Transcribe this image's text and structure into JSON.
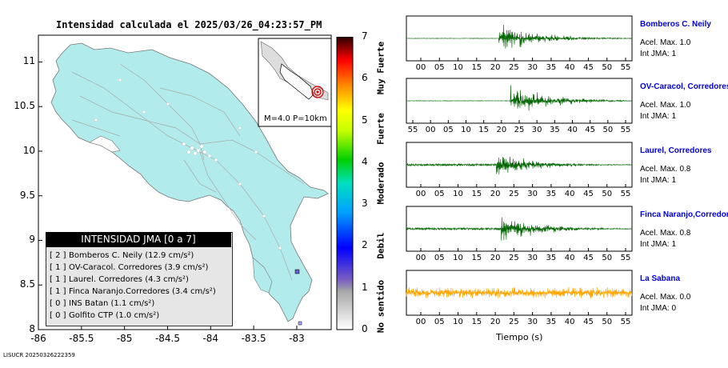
{
  "map": {
    "title": "Intensidad calculada el 2025/03/26_04:23:57_PM",
    "inset_label": "M=4.0 P=10km",
    "footer_id": "LISUCR 20250326222359"
  },
  "legend": {
    "title": "INTENSIDAD JMA [0 a 7]",
    "rows": [
      {
        "code": "[ 2 ]",
        "text": "Bomberos C. Neily (12.9 cm/s²)"
      },
      {
        "code": "[ 1 ]",
        "text": "OV-Caracol. Corredores (3.9 cm/s²)"
      },
      {
        "code": "[ 1 ]",
        "text": "Laurel. Corredores (4.3 cm/s²)"
      },
      {
        "code": "[ 1 ]",
        "text": "Finca Naranjo.Corredores (3.4 cm/s²)"
      },
      {
        "code": "[ 0 ]",
        "text": "INS Batan (1.1 cm/s²)"
      },
      {
        "code": "[ 0 ]",
        "text": "Golfito CTP (1.0 cm/s²)"
      }
    ]
  },
  "colorbar": {
    "ticks": [
      "0",
      "1",
      "2",
      "3",
      "4",
      "5",
      "6",
      "7"
    ],
    "categories": [
      "No sentido",
      "Debil",
      "Moderado",
      "Fuerte",
      "Muy Fuerte"
    ]
  },
  "stations": [
    {
      "name": "Bomberos C. Neily",
      "accel": "Acel. Max. 1.0",
      "jma": "Int JMA: 1",
      "color": "#006400"
    },
    {
      "name": "OV-Caracol, Corredores",
      "accel": "Acel. Max. 1.0",
      "jma": "Int JMA: 1",
      "color": "#006400"
    },
    {
      "name": "Laurel, Corredores",
      "accel": "Acel. Max. 0.8",
      "jma": "Int JMA: 1",
      "color": "#006400"
    },
    {
      "name": "Finca Naranjo,Corredores",
      "accel": "Acel. Max. 0.8",
      "jma": "Int JMA: 1",
      "color": "#006400"
    },
    {
      "name": "La Sabana",
      "accel": "Acel. Max. 0.0",
      "jma": "Int JMA: 0",
      "color": "#ffa500"
    }
  ],
  "trace_ticks": [
    [
      "00",
      "05",
      "10",
      "15",
      "20",
      "25",
      "30",
      "35",
      "40",
      "45",
      "50",
      "55"
    ],
    [
      "55",
      "00",
      "05",
      "10",
      "15",
      "20",
      "25",
      "30",
      "35",
      "40",
      "45",
      "50",
      "55"
    ],
    [
      "00",
      "05",
      "10",
      "15",
      "20",
      "25",
      "30",
      "35",
      "40",
      "45",
      "50",
      "55"
    ],
    [
      "00",
      "05",
      "10",
      "15",
      "20",
      "25",
      "30",
      "35",
      "40",
      "45",
      "50",
      "55"
    ],
    [
      "00",
      "05",
      "10",
      "15",
      "20",
      "25",
      "30",
      "35",
      "40",
      "45",
      "50",
      "55"
    ]
  ],
  "traces_xlabel": "Tiempo (s)",
  "chart_data": {
    "type": "scatter",
    "title": "Intensidad calculada el 2025/03/26_04:23:57_PM",
    "xlim": [
      -86,
      -82.6
    ],
    "ylim": [
      8,
      11.3
    ],
    "x_ticks": [
      "-86",
      "-85.5",
      "-85",
      "-84.5",
      "-84",
      "-83.5",
      "-83"
    ],
    "y_ticks": [
      "8",
      "8.5",
      "9",
      "9.5",
      "10",
      "10.5",
      "11"
    ],
    "epicenter": {
      "lon": -82.95,
      "lat": 8.62
    },
    "stations_plotted": [
      {
        "lon": -82.95,
        "lat": 8.62
      },
      {
        "lon": -82.98,
        "lat": 8.4
      }
    ]
  }
}
